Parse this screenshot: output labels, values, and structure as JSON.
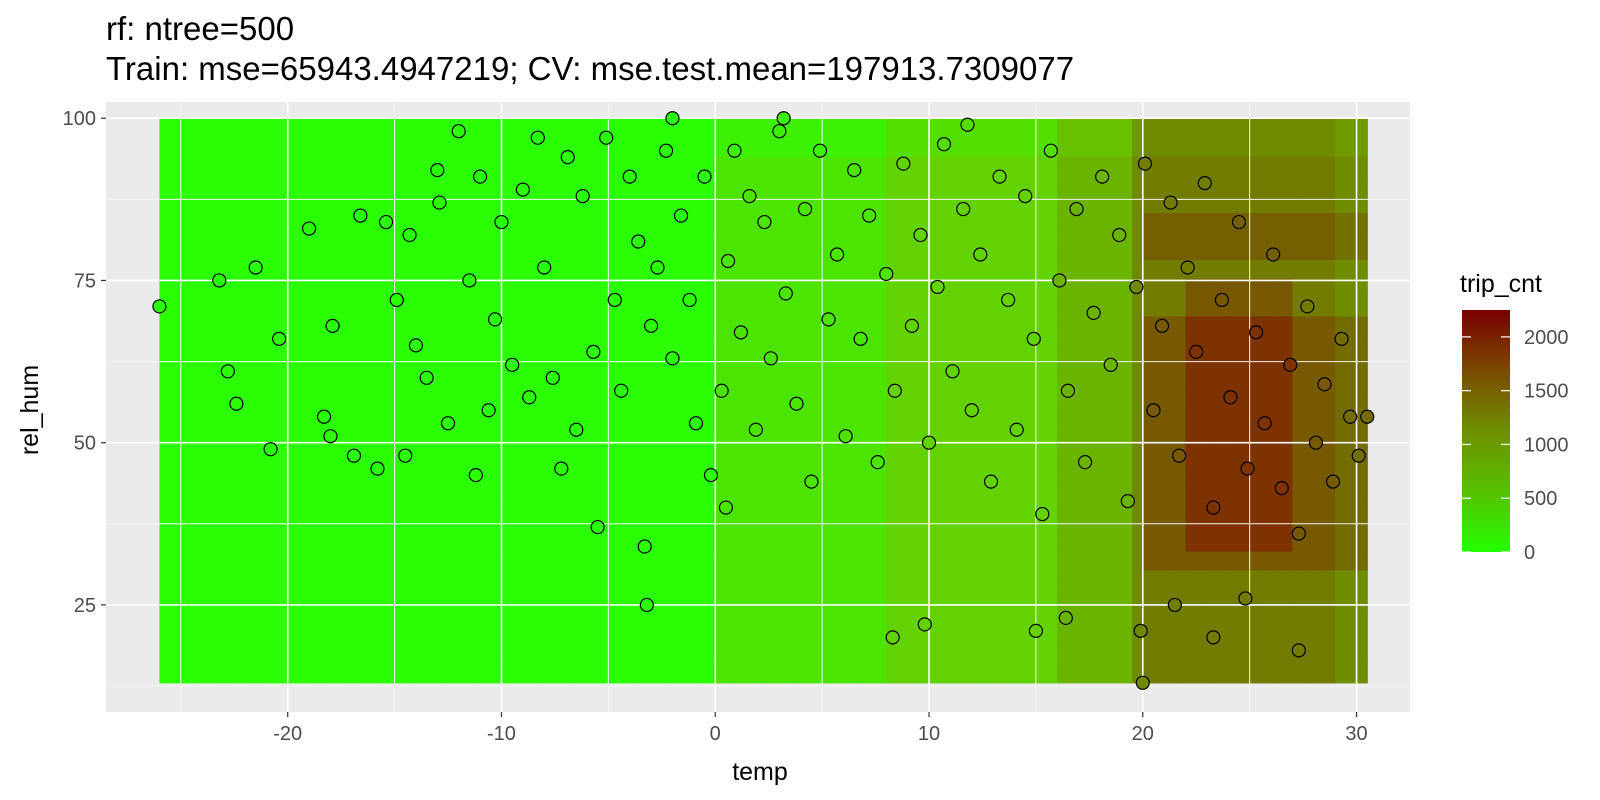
{
  "chart_data": {
    "type": "scatter",
    "title": "rf: ntree=500",
    "subtitle": "Train: mse=65943.4947219; CV: mse.test.mean=197913.7309077",
    "xlabel": "temp",
    "ylabel": "rel_hum",
    "xlim": [
      -28.5,
      32.5
    ],
    "ylim": [
      8.5,
      102.5
    ],
    "x_ticks": [
      -20,
      -10,
      0,
      10,
      20,
      30
    ],
    "y_ticks": [
      25,
      50,
      75,
      100
    ],
    "grid": true,
    "legend": {
      "title": "trip_cnt",
      "placement": "right",
      "ticks": [
        0,
        500,
        1000,
        1500,
        2000
      ],
      "range": [
        0,
        2250
      ],
      "colors": [
        "#22ff00",
        "#6f8f00",
        "#7a3000",
        "#780000"
      ]
    },
    "heatmap": {
      "x_range": [
        -26.0,
        30.5
      ],
      "y_range": [
        13.0,
        100.0
      ],
      "colors": {
        "low": "#2aff05",
        "mid": "#6bbf00",
        "high": "#7d3500"
      }
    },
    "series": [
      {
        "x": [
          -26.0,
          -23.2,
          -22.8,
          -22.4,
          -21.5,
          -20.8,
          -20.4,
          -19.0,
          -18.3,
          -18.0,
          -17.9,
          -16.9,
          -16.6,
          -15.8,
          -15.4,
          -14.9,
          -14.5,
          -14.3,
          -14.0,
          -13.5,
          -13.0,
          -12.9,
          -12.5,
          -12.0,
          -11.5,
          -11.2,
          -11.0,
          -10.6,
          -10.3,
          -10.0,
          -9.5,
          -9.0,
          -8.7,
          -8.3,
          -8.0,
          -7.6,
          -7.2,
          -6.9,
          -6.5,
          -6.2,
          -5.7,
          -5.5,
          -5.1,
          -4.7,
          -4.4,
          -4.0,
          -3.6,
          -3.3,
          -3.0,
          -2.7,
          -2.3,
          -2.0,
          -1.6,
          -1.2,
          -0.9,
          -0.5,
          -0.2,
          0.3,
          0.6,
          0.9,
          1.2,
          1.6,
          1.9,
          2.3,
          2.6,
          3.0,
          3.3,
          3.8,
          4.2,
          4.5,
          4.9,
          5.3,
          5.7,
          6.1,
          6.5,
          6.8,
          7.2,
          7.6,
          8.0,
          8.4,
          8.8,
          9.2,
          9.6,
          10.0,
          10.4,
          10.7,
          11.1,
          11.6,
          12.0,
          12.4,
          12.9,
          13.3,
          13.7,
          14.1,
          14.5,
          14.9,
          15.3,
          15.7,
          16.1,
          16.5,
          16.9,
          17.3,
          17.7,
          18.1,
          18.5,
          18.9,
          19.3,
          19.7,
          20.1,
          20.5,
          20.9,
          21.3,
          21.7,
          22.1,
          22.5,
          22.9,
          23.3,
          23.7,
          24.1,
          24.5,
          24.9,
          25.3,
          25.7,
          26.1,
          26.5,
          26.9,
          27.3,
          27.7,
          28.1,
          28.5,
          28.9,
          29.3,
          29.7,
          30.1,
          30.5,
          20.0,
          21.5,
          23.3,
          19.9,
          24.8,
          16.4,
          15.0,
          8.3,
          9.8,
          -3.2,
          0.5,
          3.2,
          -2.0,
          11.8,
          27.3
        ],
        "y": [
          71,
          75,
          61,
          56,
          77,
          49,
          66,
          83,
          54,
          51,
          68,
          48,
          85,
          46,
          84,
          72,
          48,
          82,
          65,
          60,
          92,
          87,
          53,
          98,
          75,
          45,
          91,
          55,
          69,
          84,
          62,
          89,
          57,
          97,
          77,
          60,
          46,
          94,
          52,
          88,
          64,
          37,
          97,
          72,
          58,
          91,
          81,
          34,
          68,
          77,
          95,
          63,
          85,
          72,
          53,
          91,
          45,
          58,
          78,
          95,
          67,
          88,
          52,
          84,
          63,
          98,
          73,
          56,
          86,
          44,
          95,
          69,
          79,
          51,
          92,
          66,
          85,
          47,
          76,
          58,
          93,
          68,
          82,
          50,
          74,
          96,
          61,
          86,
          55,
          79,
          44,
          91,
          72,
          52,
          88,
          66,
          39,
          95,
          75,
          58,
          86,
          47,
          70,
          91,
          62,
          82,
          41,
          74,
          93,
          55,
          68,
          87,
          48,
          77,
          64,
          90,
          40,
          72,
          57,
          84,
          46,
          67,
          53,
          79,
          43,
          62,
          36,
          71,
          50,
          59,
          44,
          66,
          54,
          48,
          54,
          13,
          25,
          20,
          21,
          26,
          23,
          21,
          20,
          22,
          25,
          40,
          100,
          100,
          99,
          18
        ],
        "colors_by_fit": true
      }
    ]
  }
}
